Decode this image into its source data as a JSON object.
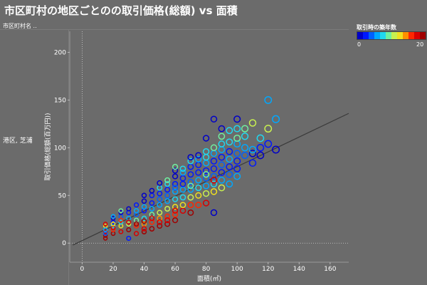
{
  "header": {
    "title": "市区町村の地区ごとのの取引価格(総額) vs 面積",
    "row_header": "市区町村名 ..",
    "row_label": "港区, 芝浦"
  },
  "legend": {
    "title": "取引時の築年数",
    "min_label": "0",
    "max_label": "20",
    "colors": [
      "#0000c8",
      "#0018ff",
      "#0060ff",
      "#00a8ff",
      "#20d8f0",
      "#70f0a0",
      "#c8f050",
      "#f0e020",
      "#ff9000",
      "#ff2800",
      "#d80000",
      "#a00000"
    ]
  },
  "chart_data": {
    "type": "scatter",
    "xlabel": "面積(㎡)",
    "ylabel": "取引価格(総額(百万円))",
    "xlim": [
      -8,
      172
    ],
    "ylim": [
      -20,
      222
    ],
    "x_ticks": [
      0,
      20,
      40,
      60,
      80,
      100,
      120,
      140,
      160
    ],
    "y_ticks": [
      0,
      50,
      100,
      150,
      200
    ],
    "color_by": "築年数",
    "color_range": [
      0,
      20
    ],
    "trend_line": {
      "x0": -6,
      "y0": -2,
      "x1": 172,
      "y1": 136
    },
    "points": [
      [
        15,
        5,
        20
      ],
      [
        15,
        8,
        19
      ],
      [
        15,
        12,
        18
      ],
      [
        15,
        10,
        4
      ],
      [
        15,
        18,
        12
      ],
      [
        15,
        20,
        18
      ],
      [
        15,
        14,
        6
      ],
      [
        20,
        10,
        19
      ],
      [
        20,
        14,
        15
      ],
      [
        20,
        18,
        8
      ],
      [
        20,
        22,
        3
      ],
      [
        20,
        26,
        1
      ],
      [
        20,
        28,
        5
      ],
      [
        20,
        16,
        17
      ],
      [
        20,
        20,
        12
      ],
      [
        25,
        12,
        18
      ],
      [
        25,
        18,
        13
      ],
      [
        25,
        22,
        7
      ],
      [
        25,
        28,
        4
      ],
      [
        25,
        32,
        1
      ],
      [
        25,
        34,
        9
      ],
      [
        25,
        24,
        16
      ],
      [
        30,
        5,
        2
      ],
      [
        30,
        14,
        19
      ],
      [
        30,
        20,
        11
      ],
      [
        30,
        26,
        5
      ],
      [
        30,
        32,
        3
      ],
      [
        30,
        36,
        0
      ],
      [
        30,
        22,
        17
      ],
      [
        35,
        10,
        18
      ],
      [
        35,
        18,
        15
      ],
      [
        35,
        24,
        9
      ],
      [
        35,
        30,
        4
      ],
      [
        35,
        34,
        6
      ],
      [
        35,
        40,
        2
      ],
      [
        35,
        20,
        19
      ],
      [
        40,
        12,
        20
      ],
      [
        40,
        20,
        14
      ],
      [
        40,
        26,
        7
      ],
      [
        40,
        34,
        3
      ],
      [
        40,
        38,
        5
      ],
      [
        40,
        44,
        1
      ],
      [
        40,
        50,
        0
      ],
      [
        40,
        15,
        17
      ],
      [
        40,
        23,
        19
      ],
      [
        45,
        15,
        19
      ],
      [
        45,
        22,
        16
      ],
      [
        45,
        30,
        9
      ],
      [
        45,
        36,
        5
      ],
      [
        45,
        42,
        3
      ],
      [
        45,
        50,
        2
      ],
      [
        45,
        55,
        1
      ],
      [
        45,
        26,
        18
      ],
      [
        50,
        18,
        19
      ],
      [
        50,
        26,
        14
      ],
      [
        50,
        32,
        10
      ],
      [
        50,
        40,
        6
      ],
      [
        50,
        46,
        4
      ],
      [
        50,
        52,
        3
      ],
      [
        50,
        58,
        8
      ],
      [
        50,
        63,
        0
      ],
      [
        50,
        22,
        17
      ],
      [
        55,
        20,
        20
      ],
      [
        55,
        28,
        15
      ],
      [
        55,
        36,
        10
      ],
      [
        55,
        44,
        6
      ],
      [
        55,
        50,
        4
      ],
      [
        55,
        56,
        2
      ],
      [
        55,
        62,
        7
      ],
      [
        55,
        66,
        9
      ],
      [
        55,
        24,
        18
      ],
      [
        60,
        24,
        19
      ],
      [
        60,
        30,
        16
      ],
      [
        60,
        38,
        12
      ],
      [
        60,
        46,
        7
      ],
      [
        60,
        54,
        5
      ],
      [
        60,
        62,
        3
      ],
      [
        60,
        70,
        1
      ],
      [
        60,
        76,
        0
      ],
      [
        60,
        80,
        9
      ],
      [
        60,
        34,
        18
      ],
      [
        60,
        58,
        4
      ],
      [
        65,
        34,
        18
      ],
      [
        65,
        40,
        13
      ],
      [
        65,
        48,
        8
      ],
      [
        65,
        56,
        5
      ],
      [
        65,
        62,
        3
      ],
      [
        65,
        68,
        2
      ],
      [
        65,
        74,
        6
      ],
      [
        65,
        78,
        8
      ],
      [
        70,
        32,
        19
      ],
      [
        70,
        40,
        15
      ],
      [
        70,
        48,
        10
      ],
      [
        70,
        56,
        6
      ],
      [
        70,
        64,
        4
      ],
      [
        70,
        72,
        3
      ],
      [
        70,
        80,
        2
      ],
      [
        70,
        86,
        7
      ],
      [
        70,
        90,
        0
      ],
      [
        70,
        60,
        9
      ],
      [
        75,
        40,
        16
      ],
      [
        75,
        50,
        12
      ],
      [
        75,
        58,
        7
      ],
      [
        75,
        66,
        5
      ],
      [
        75,
        74,
        3
      ],
      [
        75,
        82,
        2
      ],
      [
        75,
        88,
        6
      ],
      [
        75,
        92,
        1
      ],
      [
        80,
        42,
        17
      ],
      [
        80,
        52,
        11
      ],
      [
        80,
        60,
        6
      ],
      [
        80,
        68,
        4
      ],
      [
        80,
        76,
        3
      ],
      [
        80,
        84,
        5
      ],
      [
        80,
        90,
        7
      ],
      [
        80,
        96,
        8
      ],
      [
        80,
        110,
        0
      ],
      [
        80,
        72,
        9
      ],
      [
        85,
        32,
        0
      ],
      [
        85,
        54,
        13
      ],
      [
        85,
        62,
        7
      ],
      [
        85,
        70,
        4
      ],
      [
        85,
        78,
        3
      ],
      [
        85,
        86,
        2
      ],
      [
        85,
        94,
        6
      ],
      [
        85,
        100,
        9
      ],
      [
        85,
        130,
        1
      ],
      [
        85,
        66,
        18
      ],
      [
        90,
        58,
        10
      ],
      [
        90,
        66,
        5
      ],
      [
        90,
        74,
        3
      ],
      [
        90,
        82,
        4
      ],
      [
        90,
        90,
        2
      ],
      [
        90,
        98,
        6
      ],
      [
        90,
        104,
        7
      ],
      [
        90,
        112,
        9
      ],
      [
        90,
        120,
        0
      ],
      [
        95,
        62,
        6
      ],
      [
        95,
        72,
        4
      ],
      [
        95,
        80,
        3
      ],
      [
        95,
        88,
        5
      ],
      [
        95,
        96,
        2
      ],
      [
        95,
        106,
        7
      ],
      [
        95,
        118,
        8
      ],
      [
        100,
        70,
        5
      ],
      [
        100,
        78,
        3
      ],
      [
        100,
        86,
        2
      ],
      [
        100,
        94,
        4
      ],
      [
        100,
        104,
        6
      ],
      [
        100,
        110,
        9
      ],
      [
        100,
        130,
        0
      ],
      [
        100,
        120,
        8
      ],
      [
        105,
        92,
        4
      ],
      [
        105,
        100,
        6
      ],
      [
        105,
        112,
        8
      ],
      [
        105,
        120,
        9
      ],
      [
        110,
        84,
        3
      ],
      [
        110,
        94,
        1
      ],
      [
        110,
        98,
        5
      ],
      [
        110,
        126,
        10
      ],
      [
        115,
        100,
        2
      ],
      [
        115,
        92,
        0
      ],
      [
        115,
        110,
        8
      ],
      [
        120,
        104,
        3
      ],
      [
        120,
        150,
        5
      ],
      [
        120,
        120,
        10
      ],
      [
        125,
        98,
        0
      ],
      [
        125,
        130,
        5
      ]
    ]
  }
}
